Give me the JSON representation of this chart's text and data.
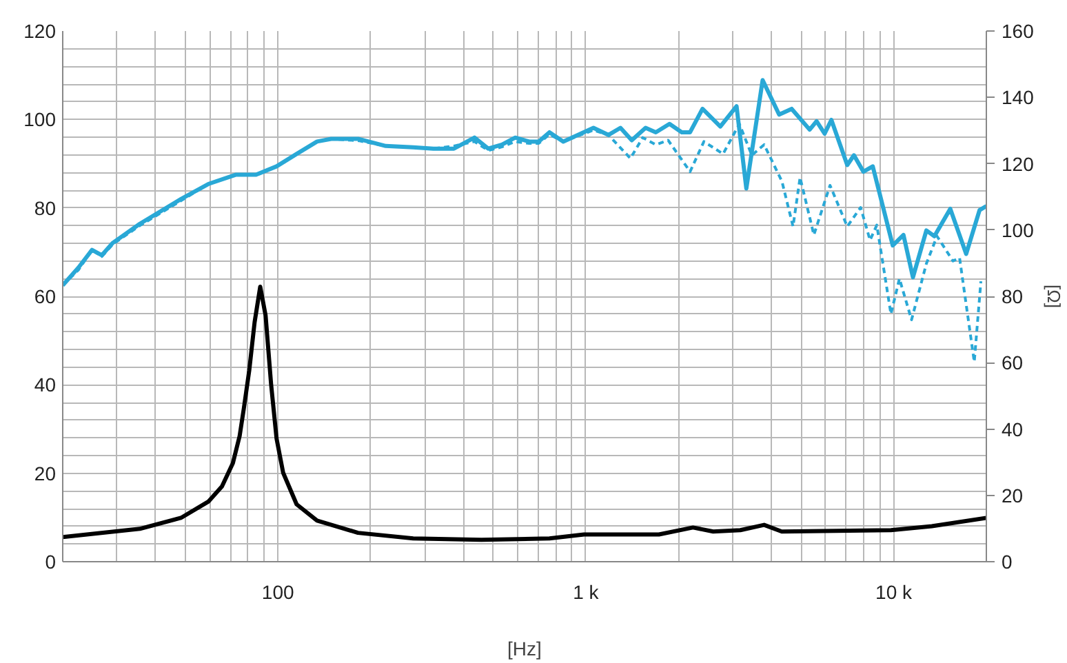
{
  "chart_data": {
    "type": "line",
    "xlabel": "[Hz]",
    "y2label": "[Ω]",
    "log": "x",
    "grid": true,
    "xlim": [
      20,
      20000
    ],
    "xticks": [
      {
        "value": 20,
        "label": null
      },
      {
        "value": 30,
        "label": null
      },
      {
        "value": 40,
        "label": null
      },
      {
        "value": 50,
        "label": null
      },
      {
        "value": 60,
        "label": null
      },
      {
        "value": 70,
        "label": null
      },
      {
        "value": 80,
        "label": null
      },
      {
        "value": 90,
        "label": null
      },
      {
        "value": 100,
        "label": "100"
      },
      {
        "value": 200,
        "label": null
      },
      {
        "value": 300,
        "label": null
      },
      {
        "value": 400,
        "label": null
      },
      {
        "value": 500,
        "label": null
      },
      {
        "value": 600,
        "label": null
      },
      {
        "value": 700,
        "label": null
      },
      {
        "value": 800,
        "label": null
      },
      {
        "value": 900,
        "label": null
      },
      {
        "value": 1000,
        "label": "1 k"
      },
      {
        "value": 2000,
        "label": null
      },
      {
        "value": 3000,
        "label": null
      },
      {
        "value": 4000,
        "label": null
      },
      {
        "value": 5000,
        "label": null
      },
      {
        "value": 6000,
        "label": null
      },
      {
        "value": 7000,
        "label": null
      },
      {
        "value": 8000,
        "label": null
      },
      {
        "value": 9000,
        "label": null
      },
      {
        "value": 10000,
        "label": "10 k"
      },
      {
        "value": 20000,
        "label": null
      }
    ],
    "ylim": [
      0,
      120
    ],
    "yticks": [
      0,
      {
        "value": 4,
        "label": null
      },
      {
        "value": 8,
        "label": null
      },
      {
        "value": 12,
        "label": null
      },
      {
        "value": 16,
        "label": null
      },
      20,
      {
        "value": 24,
        "label": null
      },
      {
        "value": 28,
        "label": null
      },
      {
        "value": 32,
        "label": null
      },
      {
        "value": 36,
        "label": null
      },
      40,
      {
        "value": 44,
        "label": null
      },
      {
        "value": 48,
        "label": null
      },
      {
        "value": 52,
        "label": null
      },
      {
        "value": 56,
        "label": null
      },
      60,
      {
        "value": 64,
        "label": null
      },
      {
        "value": 68,
        "label": null
      },
      {
        "value": 72,
        "label": null
      },
      {
        "value": 76,
        "label": null
      },
      80,
      {
        "value": 84,
        "label": null
      },
      {
        "value": 88,
        "label": null
      },
      {
        "value": 92,
        "label": null
      },
      {
        "value": 96,
        "label": null
      },
      100,
      {
        "value": 104,
        "label": null
      },
      {
        "value": 108,
        "label": null
      },
      {
        "value": 112,
        "label": null
      },
      {
        "value": 116,
        "label": null
      },
      120
    ],
    "y2lim": [
      0,
      160
    ],
    "y2ticks": [
      0,
      20,
      40,
      60,
      80,
      100,
      120,
      140,
      160
    ],
    "series": [
      {
        "color": "#29a8d6",
        "line_style": "dashed",
        "x": [
          20,
          22.5,
          24.9,
          26.8,
          29.1,
          35.6,
          48.4,
          59.4,
          72.9,
          84.9,
          99,
          115,
          134,
          149,
          183,
          224,
          275,
          320,
          373,
          435,
          482,
          534,
          590,
          655,
          703,
          762,
          845,
          1059,
          1184,
          1396,
          1531,
          1688,
          1851,
          2181,
          2419,
          2792,
          3153,
          3461,
          3795,
          4336,
          4711,
          4966,
          5505,
          6213,
          7067,
          7812,
          8379,
          8815,
          9797,
          10440,
          11430,
          12770,
          13830,
          15580,
          16370,
          18270,
          19200
        ],
        "values": [
          62.5,
          66.0,
          70.5,
          69.0,
          71.8,
          76.0,
          81.6,
          85.4,
          87.5,
          87.5,
          89.4,
          92.2,
          95.0,
          95.6,
          95.2,
          94.0,
          93.7,
          93.4,
          94.0,
          95.0,
          93.0,
          93.8,
          95.0,
          94.6,
          94.6,
          96.6,
          95.0,
          97.6,
          96.5,
          91.2,
          95.9,
          94.3,
          95.3,
          88.2,
          95.0,
          92.2,
          99.0,
          91.9,
          94.3,
          86.0,
          75.8,
          86.9,
          73.9,
          85.1,
          75.8,
          80.1,
          72.7,
          76.1,
          56.0,
          64.0,
          54.7,
          67.4,
          73.6,
          68.0,
          68.7,
          45.2,
          63.4
        ]
      },
      {
        "color": "#29a8d6",
        "line_style": "solid",
        "x": [
          20,
          22.5,
          24.9,
          26.8,
          29.1,
          35.6,
          48.4,
          59.4,
          72.9,
          84.9,
          99,
          115,
          134,
          149,
          183,
          224,
          275,
          320,
          373,
          435,
          482,
          534,
          590,
          655,
          703,
          762,
          845,
          1059,
          1184,
          1296,
          1410,
          1564,
          1688,
          1870,
          2050,
          2181,
          2394,
          2735,
          3088,
          3322,
          3753,
          4246,
          4663,
          5335,
          5618,
          5966,
          6276,
          7067,
          7430,
          7972,
          8551,
          9932,
          10760,
          11550,
          12770,
          13560,
          15270,
          17200,
          19010,
          20000
        ],
        "values": [
          62.5,
          66.5,
          70.5,
          69.3,
          72.1,
          76.4,
          82.0,
          85.4,
          87.5,
          87.5,
          89.4,
          92.2,
          95.0,
          95.6,
          95.6,
          94.0,
          93.7,
          93.4,
          93.4,
          95.9,
          93.4,
          94.3,
          95.9,
          95.0,
          95.0,
          97.1,
          95.0,
          98.1,
          96.5,
          98.1,
          95.3,
          98.1,
          97.1,
          99.0,
          97.1,
          97.1,
          102.4,
          98.4,
          103.0,
          84.4,
          108.9,
          101.1,
          102.4,
          97.7,
          99.6,
          96.8,
          99.9,
          89.7,
          91.9,
          88.2,
          89.4,
          71.5,
          73.9,
          64.3,
          74.9,
          73.6,
          79.8,
          69.6,
          79.5,
          80.4
        ]
      },
      {
        "color": "#000000",
        "line_style": "solid",
        "axis": "y2",
        "x": [
          20,
          35.6,
          48.4,
          59.4,
          65.8,
          71.4,
          75.1,
          77.5,
          80.7,
          84.0,
          87.6,
          91.2,
          95,
          99,
          104,
          115,
          134,
          182,
          275,
          458,
          762,
          987,
          1728,
          2229,
          2593,
          3176,
          3795,
          4330,
          9800,
          13300,
          20000
        ],
        "values": [
          7.4,
          9.9,
          13.2,
          18.1,
          22.7,
          29.7,
          37.9,
          46.2,
          57.7,
          72.2,
          82.9,
          74.2,
          53.6,
          37.1,
          26.8,
          17.3,
          12.4,
          8.7,
          7.0,
          6.6,
          7.0,
          8.2,
          8.2,
          10.3,
          9.1,
          9.5,
          11.1,
          9.1,
          9.5,
          10.7,
          13.2
        ]
      }
    ]
  }
}
